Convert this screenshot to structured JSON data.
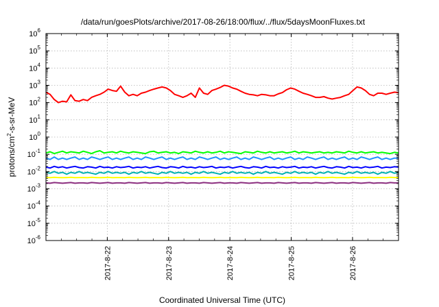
{
  "chart_data": {
    "type": "line",
    "title": "/data/run/goesPlots/archive/2017-08-26/18:00/flux/../flux/5daysMoonFluxes.txt",
    "xlabel": "Coordinated Universal Time (UTC)",
    "ylabel": {
      "prefix": "protons/cm",
      "superscript": "2",
      "suffix": "-s-sr-MeV"
    },
    "y_scale": "log",
    "ylim_exponents": [
      -6,
      6
    ],
    "y_ticks": [
      {
        "base": "10",
        "exp": "6",
        "value": 1000000.0
      },
      {
        "base": "10",
        "exp": "5",
        "value": 100000.0
      },
      {
        "base": "10",
        "exp": "4",
        "value": 10000.0
      },
      {
        "base": "10",
        "exp": "3",
        "value": 1000.0
      },
      {
        "base": "10",
        "exp": "2",
        "value": 100.0
      },
      {
        "base": "10",
        "exp": "1",
        "value": 10.0
      },
      {
        "base": "10",
        "exp": "0",
        "value": 1.0
      },
      {
        "base": "10",
        "exp": "-1",
        "value": 0.1
      },
      {
        "base": "10",
        "exp": "-2",
        "value": 0.01
      },
      {
        "base": "10",
        "exp": "-3",
        "value": 0.001
      },
      {
        "base": "10",
        "exp": "-4",
        "value": 0.0001
      },
      {
        "base": "10",
        "exp": "-5",
        "value": 1e-05
      },
      {
        "base": "10",
        "exp": "-6",
        "value": 1e-06
      }
    ],
    "xlim": [
      "2017-08-21 00:00",
      "2017-08-26 18:00"
    ],
    "x_ticks": [
      "2017-8-22",
      "2017-8-23",
      "2017-8-24",
      "2017-8-25",
      "2017-8-26"
    ],
    "grid": true,
    "legend": "none",
    "series": [
      {
        "color": "#ff0000",
        "values": [
          400,
          300,
          150,
          100,
          120,
          110,
          280,
          130,
          120,
          150,
          130,
          200,
          250,
          300,
          400,
          600,
          500,
          450,
          900,
          400,
          250,
          300,
          250,
          350,
          400,
          500,
          600,
          700,
          800,
          700,
          500,
          300,
          250,
          200,
          250,
          350,
          200,
          700,
          350,
          300,
          500,
          600,
          750,
          1000,
          900,
          700,
          600,
          450,
          350,
          300,
          280,
          250,
          300,
          280,
          250,
          250,
          320,
          380,
          550,
          700,
          600,
          450,
          350,
          300,
          250,
          200,
          200,
          220,
          180,
          160,
          180,
          200,
          250,
          300,
          500,
          800,
          700,
          500,
          300,
          250,
          350,
          350,
          300,
          350,
          400,
          380
        ]
      },
      {
        "color": "#00ff00",
        "values": [
          0.12,
          0.14,
          0.11,
          0.13,
          0.15,
          0.12,
          0.14,
          0.13,
          0.12,
          0.15,
          0.13,
          0.11,
          0.14,
          0.16,
          0.12,
          0.13,
          0.14,
          0.12,
          0.15,
          0.13,
          0.12,
          0.14,
          0.13,
          0.12,
          0.11,
          0.14,
          0.15,
          0.12,
          0.13,
          0.14,
          0.12,
          0.13,
          0.11,
          0.14,
          0.13,
          0.12,
          0.15,
          0.13,
          0.12,
          0.14,
          0.12,
          0.13,
          0.15,
          0.12,
          0.14,
          0.13,
          0.12,
          0.11,
          0.14,
          0.13,
          0.12,
          0.15,
          0.13,
          0.12,
          0.14,
          0.12,
          0.13,
          0.14,
          0.12,
          0.13,
          0.15,
          0.12,
          0.14,
          0.13,
          0.12,
          0.13,
          0.14,
          0.12,
          0.13,
          0.12,
          0.14,
          0.13,
          0.12,
          0.15,
          0.13,
          0.12,
          0.14,
          0.12,
          0.13,
          0.14,
          0.12,
          0.13,
          0.12,
          0.11,
          0.13,
          0.12
        ]
      },
      {
        "color": "#1e90ff",
        "values": [
          0.06,
          0.05,
          0.07,
          0.05,
          0.06,
          0.05,
          0.06,
          0.07,
          0.05,
          0.06,
          0.05,
          0.07,
          0.06,
          0.05,
          0.06,
          0.07,
          0.05,
          0.06,
          0.05,
          0.06,
          0.07,
          0.05,
          0.06,
          0.05,
          0.07,
          0.06,
          0.05,
          0.06,
          0.07,
          0.05,
          0.06,
          0.05,
          0.06,
          0.07,
          0.05,
          0.06,
          0.05,
          0.07,
          0.06,
          0.05,
          0.06,
          0.07,
          0.05,
          0.06,
          0.05,
          0.06,
          0.07,
          0.05,
          0.06,
          0.05,
          0.07,
          0.06,
          0.05,
          0.06,
          0.07,
          0.05,
          0.06,
          0.05,
          0.06,
          0.07,
          0.05,
          0.06,
          0.05,
          0.07,
          0.06,
          0.05,
          0.06,
          0.07,
          0.05,
          0.06,
          0.05,
          0.06,
          0.07,
          0.05,
          0.06,
          0.05,
          0.07,
          0.06,
          0.05,
          0.06,
          0.07,
          0.05,
          0.06,
          0.05,
          0.06,
          0.06
        ]
      },
      {
        "color": "#0000ff",
        "values": [
          0.018,
          0.016,
          0.02,
          0.017,
          0.019,
          0.016,
          0.018,
          0.02,
          0.017,
          0.016,
          0.019,
          0.018,
          0.016,
          0.02,
          0.017,
          0.018,
          0.016,
          0.019,
          0.017,
          0.018,
          0.02,
          0.016,
          0.018,
          0.017,
          0.019,
          0.016,
          0.018,
          0.02,
          0.017,
          0.016,
          0.019,
          0.018,
          0.016,
          0.02,
          0.017,
          0.018,
          0.016,
          0.019,
          0.017,
          0.018,
          0.02,
          0.016,
          0.018,
          0.017,
          0.019,
          0.016,
          0.018,
          0.02,
          0.017,
          0.016,
          0.019,
          0.018,
          0.016,
          0.02,
          0.017,
          0.018,
          0.016,
          0.019,
          0.017,
          0.018,
          0.02,
          0.016,
          0.018,
          0.017,
          0.019,
          0.016,
          0.018,
          0.02,
          0.017,
          0.016,
          0.019,
          0.018,
          0.016,
          0.02,
          0.017,
          0.018,
          0.016,
          0.019,
          0.017,
          0.018,
          0.02,
          0.016,
          0.018,
          0.017,
          0.019,
          0.018
        ]
      },
      {
        "color": "#00b0b0",
        "values": [
          0.009,
          0.008,
          0.01,
          0.008,
          0.009,
          0.007,
          0.009,
          0.008,
          0.01,
          0.008,
          0.009,
          0.008,
          0.007,
          0.009,
          0.008,
          0.01,
          0.008,
          0.009,
          0.008,
          0.009,
          0.007,
          0.009,
          0.008,
          0.01,
          0.008,
          0.009,
          0.008,
          0.007,
          0.009,
          0.008,
          0.01,
          0.008,
          0.009,
          0.008,
          0.009,
          0.007,
          0.009,
          0.008,
          0.01,
          0.008,
          0.009,
          0.008,
          0.007,
          0.009,
          0.008,
          0.01,
          0.008,
          0.009,
          0.008,
          0.009,
          0.007,
          0.009,
          0.008,
          0.01,
          0.008,
          0.009,
          0.008,
          0.007,
          0.009,
          0.008,
          0.01,
          0.008,
          0.009,
          0.008,
          0.009,
          0.007,
          0.009,
          0.008,
          0.01,
          0.008,
          0.009,
          0.008,
          0.007,
          0.009,
          0.008,
          0.01,
          0.008,
          0.009,
          0.008,
          0.009,
          0.007,
          0.009,
          0.008,
          0.01,
          0.008,
          0.009
        ]
      },
      {
        "color": "#ffff00",
        "values": [
          0.0045,
          0.0044,
          0.0046,
          0.0045,
          0.0044,
          0.0045,
          0.0046,
          0.0044,
          0.0045,
          0.0045,
          0.0044,
          0.0046,
          0.0045,
          0.0044,
          0.0045,
          0.0046,
          0.0044,
          0.0045,
          0.0045,
          0.0044,
          0.0046,
          0.0045,
          0.0044,
          0.0045,
          0.0046,
          0.0044,
          0.0045,
          0.0045,
          0.0044,
          0.0046,
          0.0045,
          0.0044,
          0.0045,
          0.0046,
          0.0044,
          0.0045,
          0.0045,
          0.0044,
          0.0046,
          0.0045,
          0.0044,
          0.0045,
          0.0046,
          0.0044,
          0.0045,
          0.0045,
          0.0044,
          0.0046,
          0.0045,
          0.0044,
          0.0045,
          0.0046,
          0.0044,
          0.0045,
          0.0045,
          0.0044,
          0.0046,
          0.0045,
          0.0044,
          0.0045,
          0.0046,
          0.0044,
          0.0045,
          0.0045,
          0.0044,
          0.0046,
          0.0045,
          0.0044,
          0.0045,
          0.0046,
          0.0044,
          0.0045,
          0.0045,
          0.0044,
          0.0046,
          0.0045,
          0.0044,
          0.0045,
          0.0046,
          0.0044,
          0.0045,
          0.0045,
          0.0044,
          0.0046,
          0.0045,
          0.0045
        ]
      },
      {
        "color": "#8b2e7f",
        "values": [
          0.0022,
          0.0021,
          0.0023,
          0.0022,
          0.0021,
          0.0022,
          0.0023,
          0.0021,
          0.0022,
          0.0022,
          0.0021,
          0.0023,
          0.0022,
          0.0021,
          0.0022,
          0.0023,
          0.0021,
          0.0022,
          0.0022,
          0.0021,
          0.0023,
          0.0022,
          0.0021,
          0.0022,
          0.0023,
          0.0021,
          0.0022,
          0.0022,
          0.0021,
          0.0023,
          0.0022,
          0.0021,
          0.0022,
          0.0023,
          0.0021,
          0.0022,
          0.0022,
          0.0021,
          0.0023,
          0.0022,
          0.0021,
          0.0022,
          0.0023,
          0.0021,
          0.0022,
          0.0022,
          0.0021,
          0.0023,
          0.0022,
          0.0021,
          0.0022,
          0.0023,
          0.0021,
          0.0022,
          0.0022,
          0.0021,
          0.0023,
          0.0022,
          0.0021,
          0.0022,
          0.0023,
          0.0021,
          0.0022,
          0.0022,
          0.0021,
          0.0023,
          0.0022,
          0.0021,
          0.0022,
          0.0023,
          0.0021,
          0.0022,
          0.0022,
          0.0021,
          0.0023,
          0.0022,
          0.0021,
          0.0022,
          0.0023,
          0.0021,
          0.0022,
          0.0022,
          0.0021,
          0.0023,
          0.0022,
          0.0022
        ]
      }
    ]
  }
}
